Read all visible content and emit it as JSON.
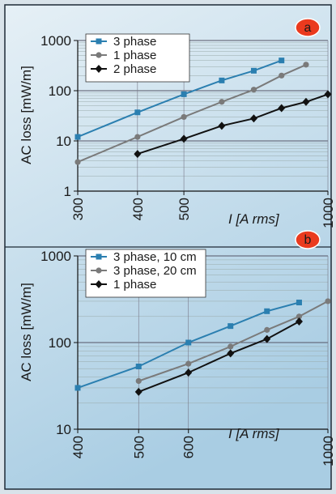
{
  "colors": {
    "frame": "#1e2a36",
    "panel_top": "#dbe9f3",
    "panel_bottom": "#a8cce3",
    "badge": "#ea3a1e",
    "series_3phase": "#2b7fb0",
    "series_gray": "#7a7a7a",
    "series_black": "#111111"
  },
  "chart_data": [
    {
      "type": "line",
      "panel": "a",
      "xlabel": "I [A rms]",
      "ylabel": "AC loss [mW/m]",
      "x_scale": "log",
      "y_scale": "log",
      "xlim": [
        300,
        1000
      ],
      "ylim": [
        1,
        1000
      ],
      "xticks": [
        300,
        400,
        500,
        1000
      ],
      "xtick_labels": [
        "300",
        "400",
        "500",
        "1000"
      ],
      "yticks": [
        1,
        10,
        100,
        1000
      ],
      "ytick_labels": [
        "1",
        "10",
        "100",
        "1000"
      ],
      "grid": true,
      "legend_position": "top-left",
      "series": [
        {
          "name": "3 phase",
          "marker": "square",
          "color_key": "series_3phase",
          "x": [
            300,
            400,
            500,
            600,
            700,
            800
          ],
          "y": [
            12,
            37,
            85,
            160,
            250,
            400
          ]
        },
        {
          "name": "1 phase",
          "marker": "circle",
          "color_key": "series_gray",
          "x": [
            300,
            400,
            500,
            600,
            700,
            800,
            900
          ],
          "y": [
            3.8,
            12,
            30,
            60,
            105,
            200,
            330
          ]
        },
        {
          "name": "2 phase",
          "marker": "diamond",
          "color_key": "series_black",
          "x": [
            400,
            500,
            600,
            700,
            800,
            900,
            1000
          ],
          "y": [
            5.5,
            11,
            20,
            28,
            45,
            60,
            85
          ]
        }
      ]
    },
    {
      "type": "line",
      "panel": "b",
      "xlabel": "I [A rms]",
      "ylabel": "AC loss [mW/m]",
      "x_scale": "log",
      "y_scale": "log",
      "xlim": [
        400,
        1000
      ],
      "ylim": [
        10,
        1000
      ],
      "xticks": [
        400,
        500,
        600,
        1000
      ],
      "xtick_labels": [
        "400",
        "500",
        "600",
        "1000"
      ],
      "yticks": [
        10,
        100,
        1000
      ],
      "ytick_labels": [
        "10",
        "100",
        "1000"
      ],
      "grid": true,
      "legend_position": "top-left",
      "series": [
        {
          "name": "3 phase, 10 cm",
          "marker": "square",
          "color_key": "series_3phase",
          "x": [
            400,
            500,
            600,
            700,
            800,
            900
          ],
          "y": [
            30,
            53,
            100,
            155,
            230,
            290
          ]
        },
        {
          "name": "3 phase, 20 cm",
          "marker": "circle",
          "color_key": "series_gray",
          "x": [
            500,
            600,
            700,
            800,
            900,
            1000
          ],
          "y": [
            36,
            57,
            90,
            140,
            200,
            300
          ]
        },
        {
          "name": "1 phase",
          "marker": "diamond",
          "color_key": "series_black",
          "x": [
            500,
            600,
            700,
            800,
            900
          ],
          "y": [
            27,
            45,
            75,
            110,
            175
          ]
        }
      ]
    }
  ]
}
